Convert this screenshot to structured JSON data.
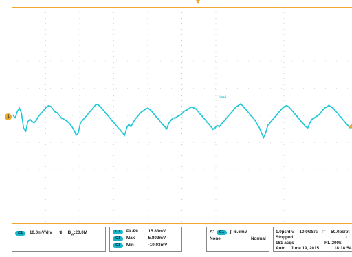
{
  "colors": {
    "trace": "#1fc8d6",
    "grid_border": "#f0a830",
    "badge": "#19b4c8"
  },
  "screen": {
    "channel_marker": "1",
    "trace_label": "Wel",
    "trace_samples": [
      0,
      -2,
      3,
      6,
      2,
      -10,
      -13,
      -5,
      -3,
      -5,
      -6,
      -4,
      -1,
      1,
      3,
      5,
      7,
      8,
      7,
      5,
      3,
      2,
      0,
      -2,
      -3,
      -4,
      -5,
      -7,
      -9,
      -12,
      -16,
      -14,
      -6,
      -4,
      -2,
      0,
      2,
      4,
      6,
      8,
      9,
      8,
      6,
      4,
      2,
      0,
      -2,
      -4,
      -6,
      -8,
      -10,
      -12,
      -14,
      -16,
      -10,
      -7,
      -9,
      -6,
      -3,
      -1,
      1,
      3,
      4,
      5,
      6,
      5,
      3,
      1,
      -1,
      -3,
      -5,
      -7,
      -9,
      -11,
      -6,
      -4,
      -2,
      -2,
      -1,
      0,
      1,
      3,
      4,
      5,
      6,
      7,
      6,
      5,
      3,
      1,
      -1,
      -3,
      -5,
      -7,
      -9,
      -11,
      -10,
      -8,
      -9,
      -7,
      -5,
      -3,
      -1,
      1,
      3,
      5,
      7,
      8,
      9,
      8,
      6,
      4,
      2,
      0,
      -2,
      -4,
      -7,
      -10,
      -14,
      -18,
      -14,
      -8,
      -6,
      -4,
      -2,
      0,
      2,
      4,
      6,
      7,
      8,
      7,
      5,
      3,
      1,
      -1,
      -3,
      -5,
      -7,
      -9,
      -10,
      -6,
      -3,
      -2,
      -1,
      0,
      2,
      4,
      6,
      7,
      8,
      7,
      6,
      4,
      2,
      0,
      -2,
      -4,
      -6,
      -8,
      -10,
      -7
    ]
  },
  "status": {
    "ch1_badge": "C1",
    "ch1_scale": "10.0mV/div",
    "bw_label": "B",
    "bw_sub": "W",
    "bw_value": ":20.0M",
    "meas": [
      {
        "badge": "C1",
        "label": "Pk-Pk",
        "value": "15.83mV"
      },
      {
        "badge": "C1",
        "label": "Max",
        "value": "5.802mV"
      },
      {
        "badge": "C1",
        "label": "Min",
        "value": "-10.03mV"
      }
    ],
    "trig_badge": "A'",
    "trig_ch": "C1",
    "trig_level": "-5.6mV",
    "trig_source": "None",
    "trig_mode": "Normal",
    "timebase": "1.0µs/div",
    "sample_rate": "10.0GS/s",
    "mode": "IT",
    "ps_pt": "50.0ps/pt",
    "run_state": "Stopped",
    "acqs": "161 acqs",
    "record_length": "RL:200k",
    "auto": "Auto",
    "date": "June 19, 2015",
    "time": "18:18:54"
  }
}
